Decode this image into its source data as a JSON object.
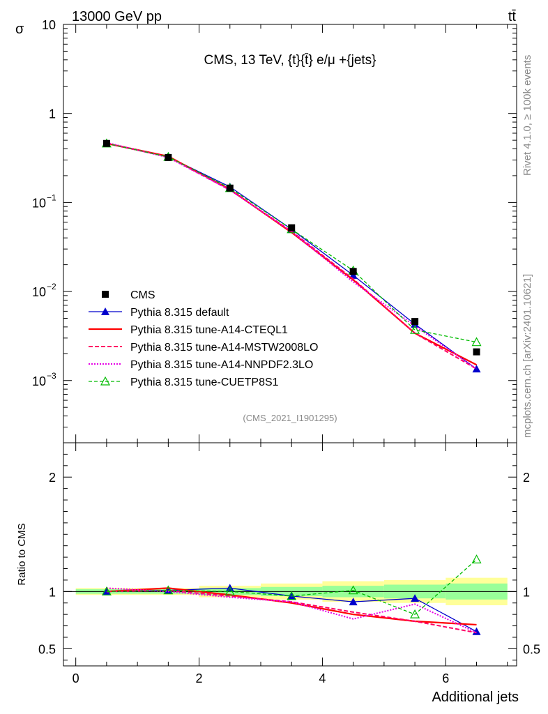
{
  "header": {
    "left_label": "13000 GeV pp",
    "right_label": "tt̄"
  },
  "side_labels": {
    "rivet": "Rivet 4.1.0, ≥ 100k events",
    "mcplots": "mcplots.cern.ch [arXiv:2401.10621]"
  },
  "colors": {
    "data": "#000000",
    "default": "#0000cc",
    "cteql1": "#ff0000",
    "mstw": "#ff0066",
    "nnpdf": "#e600e6",
    "cuetp8s1": "#00bb00",
    "band_outer": "#ffff99",
    "band_inner": "#99ff99"
  },
  "chart_data": [
    {
      "type": "line",
      "panel": "main",
      "title": "CMS, 13 TeV, {t}{t̄} e/μ +{jets}",
      "ylabel": "σ",
      "yscale": "log",
      "ylim": [
        0.0002,
        10
      ],
      "xlim": [
        -0.2,
        7.15
      ],
      "y_ticks": [
        {
          "value": 10,
          "label": "10"
        },
        {
          "value": 1,
          "label": "1"
        },
        {
          "value": 0.1,
          "label": "10",
          "exp": "−1"
        },
        {
          "value": 0.01,
          "label": "10",
          "exp": "−2"
        },
        {
          "value": 0.001,
          "label": "10",
          "exp": "−3"
        }
      ],
      "analysis_id": "(CMS_2021_I1901295)",
      "x": [
        0.5,
        1.5,
        2.5,
        3.5,
        4.5,
        5.5,
        6.5
      ],
      "series": [
        {
          "name": "CMS",
          "style": "data",
          "values": [
            0.46,
            0.32,
            0.145,
            0.052,
            0.0168,
            0.0046,
            0.0021
          ]
        },
        {
          "name": "Pythia 8.315 default",
          "style": "default",
          "values": [
            0.46,
            0.325,
            0.15,
            0.05,
            0.0152,
            0.0043,
            0.00135
          ]
        },
        {
          "name": "Pythia 8.315 tune-A14-CTEQL1",
          "style": "cteql1",
          "values": [
            0.46,
            0.33,
            0.14,
            0.046,
            0.0135,
            0.0034,
            0.0015
          ]
        },
        {
          "name": "Pythia 8.315 tune-A14-MSTW2008LO",
          "style": "mstw",
          "values": [
            0.46,
            0.325,
            0.138,
            0.0475,
            0.0138,
            0.0034,
            0.00135
          ]
        },
        {
          "name": "Pythia 8.315 tune-A14-NNPDF2.3LO",
          "style": "nnpdf",
          "values": [
            0.47,
            0.32,
            0.138,
            0.047,
            0.0128,
            0.0041,
            0.00135
          ]
        },
        {
          "name": "Pythia 8.315 tune-CUETP8S1",
          "style": "cuetp8s1",
          "values": [
            0.46,
            0.325,
            0.145,
            0.05,
            0.0172,
            0.0037,
            0.0027
          ]
        }
      ]
    },
    {
      "type": "line",
      "panel": "ratio",
      "xlabel": "Additional jets",
      "ylabel": "Ratio to CMS",
      "yscale": "linear",
      "ylim": [
        0.35,
        2.3
      ],
      "xlim": [
        -0.2,
        7.15
      ],
      "y_ticks": [
        0.5,
        1,
        2
      ],
      "y_tick_labels": [
        "0.5",
        "1",
        "2"
      ],
      "x_ticks": [
        0,
        2,
        4,
        6
      ],
      "x_tick_labels": [
        "0",
        "2",
        "4",
        "6"
      ],
      "x": [
        0.5,
        1.5,
        2.5,
        3.5,
        4.5,
        5.5,
        6.5
      ],
      "bins": [
        [
          0,
          1
        ],
        [
          1,
          2
        ],
        [
          2,
          3
        ],
        [
          3,
          4
        ],
        [
          4,
          5
        ],
        [
          5,
          6
        ],
        [
          6,
          7
        ]
      ],
      "band_outer": [
        0.03,
        0.03,
        0.05,
        0.07,
        0.09,
        0.1,
        0.12
      ],
      "band_inner": [
        0.02,
        0.02,
        0.03,
        0.04,
        0.05,
        0.06,
        0.07
      ],
      "series": [
        {
          "name": "Pythia 8.315 default",
          "style": "default",
          "values": [
            1.0,
            1.01,
            1.03,
            0.96,
            0.91,
            0.94,
            0.65
          ]
        },
        {
          "name": "Pythia 8.315 tune-A14-CTEQL1",
          "style": "cteql1",
          "values": [
            1.0,
            1.03,
            0.97,
            0.9,
            0.8,
            0.74,
            0.71
          ]
        },
        {
          "name": "Pythia 8.315 tune-A14-MSTW2008LO",
          "style": "mstw",
          "values": [
            1.0,
            1.01,
            0.96,
            0.91,
            0.82,
            0.74,
            0.64
          ]
        },
        {
          "name": "Pythia 8.315 tune-A14-NNPDF2.3LO",
          "style": "nnpdf",
          "values": [
            1.03,
            1.0,
            0.95,
            0.91,
            0.76,
            0.89,
            0.64
          ]
        },
        {
          "name": "Pythia 8.315 tune-CUETP8S1",
          "style": "cuetp8s1",
          "values": [
            1.0,
            1.01,
            1.0,
            0.96,
            1.01,
            0.8,
            1.28
          ]
        }
      ]
    }
  ]
}
